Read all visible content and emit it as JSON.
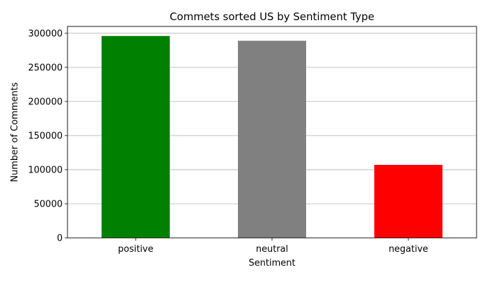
{
  "chart_data": {
    "type": "bar",
    "title": "Commets sorted US by Sentiment Type",
    "xlabel": "Sentiment",
    "ylabel": "Number of Comments",
    "categories": [
      "positive",
      "neutral",
      "negative"
    ],
    "values": [
      296000,
      289000,
      107000
    ],
    "colors": [
      "#008000",
      "#808080",
      "#ff0000"
    ],
    "ylim": [
      0,
      310000
    ],
    "yticks": [
      0,
      50000,
      100000,
      150000,
      200000,
      250000,
      300000
    ],
    "grid": "y-major",
    "legend": "none"
  }
}
